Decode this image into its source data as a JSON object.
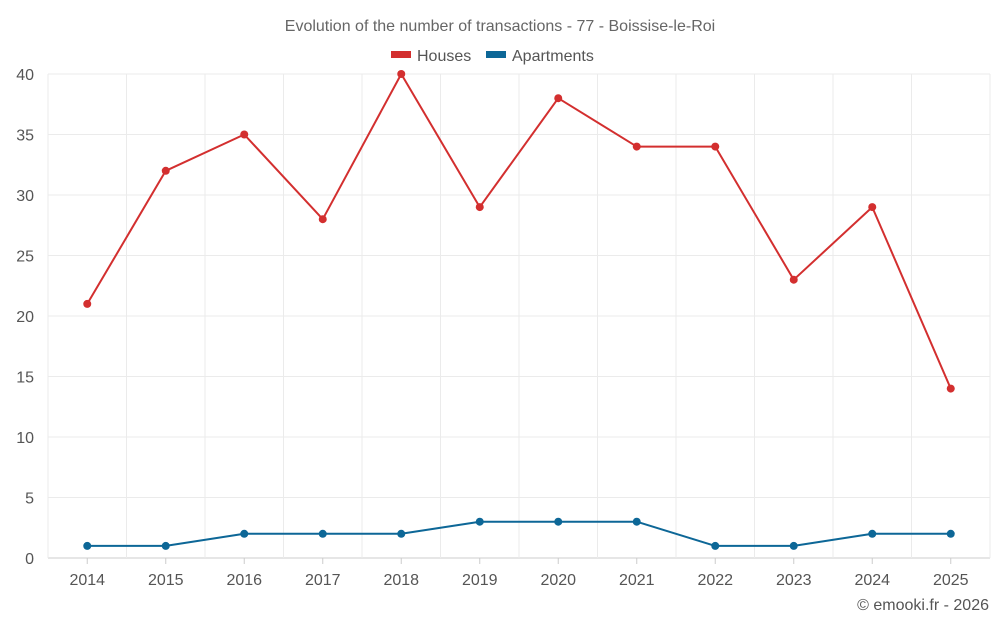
{
  "chart_data": {
    "type": "line",
    "title": "Evolution of the number of transactions - 77 - Boissise-le-Roi",
    "categories": [
      "2014",
      "2015",
      "2016",
      "2017",
      "2018",
      "2019",
      "2020",
      "2021",
      "2022",
      "2023",
      "2024",
      "2025"
    ],
    "ylim": [
      0,
      40
    ],
    "yticks": [
      0,
      5,
      10,
      15,
      20,
      25,
      30,
      35,
      40
    ],
    "grid": true,
    "legend_position": "top-center",
    "series": [
      {
        "name": "Houses",
        "color": "#d32f2f",
        "values": [
          21,
          32,
          35,
          28,
          40,
          29,
          38,
          34,
          34,
          23,
          29,
          14
        ]
      },
      {
        "name": "Apartments",
        "color": "#0d6797",
        "values": [
          1,
          1,
          2,
          2,
          2,
          3,
          3,
          3,
          1,
          1,
          2,
          2
        ]
      }
    ]
  },
  "credit": "© emooki.fr - 2026"
}
